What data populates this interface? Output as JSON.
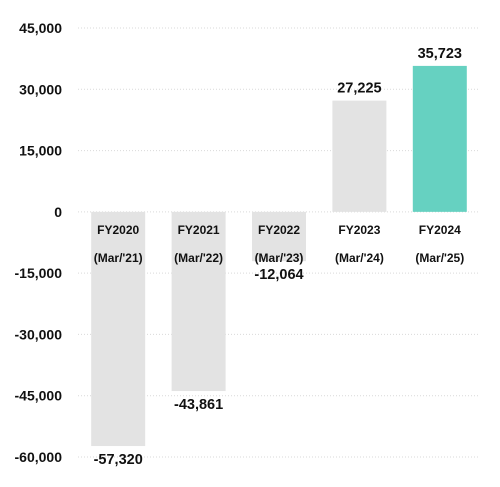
{
  "chart_data": {
    "type": "bar",
    "categories": [
      {
        "line1": "FY2020",
        "line2": "(Mar/'21)"
      },
      {
        "line1": "FY2021",
        "line2": "(Mar/'22)"
      },
      {
        "line1": "FY2022",
        "line2": "(Mar/'23)"
      },
      {
        "line1": "FY2023",
        "line2": "(Mar/'24)"
      },
      {
        "line1": "FY2024",
        "line2": "(Mar/'25)"
      }
    ],
    "values": [
      -57320,
      -43861,
      -12064,
      27225,
      35723
    ],
    "value_labels": [
      "-57,320",
      "-43,861",
      "-12,064",
      "27,225",
      "35,723"
    ],
    "ylim": [
      -60000,
      45000
    ],
    "yticks": [
      45000,
      30000,
      15000,
      0,
      -15000,
      -30000,
      -45000,
      -60000
    ],
    "ytick_labels": [
      "45,000",
      "30,000",
      "15,000",
      "0",
      "-15,000",
      "-30,000",
      "-45,000",
      "-60,000"
    ],
    "grid": true,
    "colors": {
      "default_bar": "#e3e3e3",
      "highlight_bar": "#66d1c1",
      "highlight_index": 4
    },
    "title": "",
    "xlabel": "",
    "ylabel": ""
  }
}
